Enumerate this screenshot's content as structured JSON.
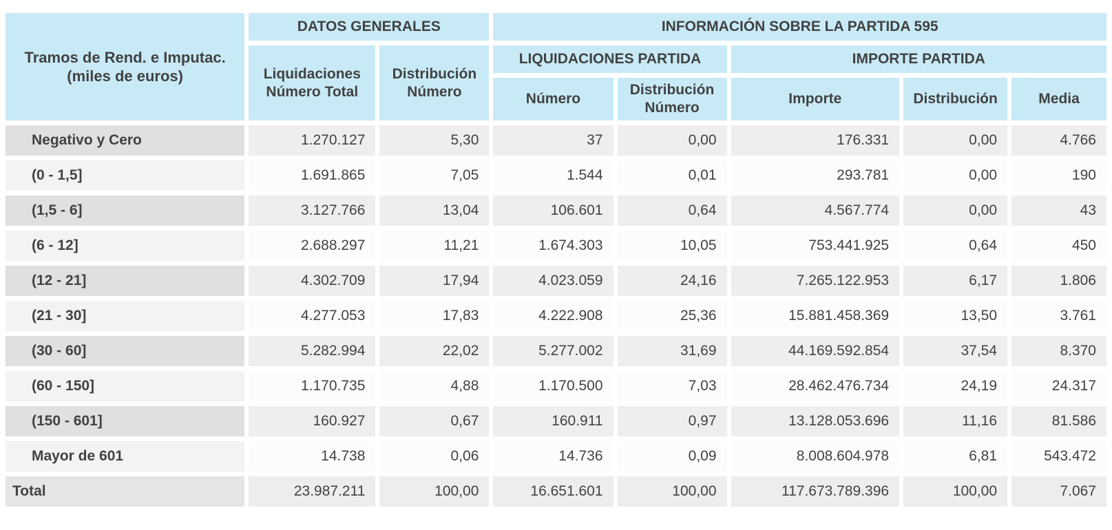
{
  "colors": {
    "header-bg": "#c8eaf6",
    "label-odd": "#e0e0e0",
    "label-even": "#f3f3f3",
    "cell-odd": "#eeeeee",
    "cell-even": "#fcfcfc",
    "total-label": "#e5e5e5",
    "total-cell": "#ededed",
    "text": "#424242"
  },
  "chart_data": {
    "type": "table",
    "corner_header": {
      "line1": "Tramos de Rend. e Imputac.",
      "line2": "(miles de euros)"
    },
    "group_headers": {
      "datos_generales": "DATOS GENERALES",
      "informacion_partida": "INFORMACIÓN SOBRE LA PARTIDA 595",
      "liquidaciones_partida": "LIQUIDACIONES PARTIDA",
      "importe_partida": "IMPORTE PARTIDA"
    },
    "columns": [
      "Liquidaciones Número Total",
      "Distribución Número",
      "Número",
      "Distribución Número",
      "Importe",
      "Distribución",
      "Media"
    ],
    "rows": [
      {
        "label": "Negativo y Cero",
        "values": [
          "1.270.127",
          "5,30",
          "37",
          "0,00",
          "176.331",
          "0,00",
          "4.766"
        ]
      },
      {
        "label": "(0 - 1,5]",
        "values": [
          "1.691.865",
          "7,05",
          "1.544",
          "0,01",
          "293.781",
          "0,00",
          "190"
        ]
      },
      {
        "label": "(1,5 - 6]",
        "values": [
          "3.127.766",
          "13,04",
          "106.601",
          "0,64",
          "4.567.774",
          "0,00",
          "43"
        ]
      },
      {
        "label": "(6 - 12]",
        "values": [
          "2.688.297",
          "11,21",
          "1.674.303",
          "10,05",
          "753.441.925",
          "0,64",
          "450"
        ]
      },
      {
        "label": "(12 - 21]",
        "values": [
          "4.302.709",
          "17,94",
          "4.023.059",
          "24,16",
          "7.265.122.953",
          "6,17",
          "1.806"
        ]
      },
      {
        "label": "(21 - 30]",
        "values": [
          "4.277.053",
          "17,83",
          "4.222.908",
          "25,36",
          "15.881.458.369",
          "13,50",
          "3.761"
        ]
      },
      {
        "label": "(30 - 60]",
        "values": [
          "5.282.994",
          "22,02",
          "5.277.002",
          "31,69",
          "44.169.592.854",
          "37,54",
          "8.370"
        ]
      },
      {
        "label": "(60 - 150]",
        "values": [
          "1.170.735",
          "4,88",
          "1.170.500",
          "7,03",
          "28.462.476.734",
          "24,19",
          "24.317"
        ]
      },
      {
        "label": "(150 - 601]",
        "values": [
          "160.927",
          "0,67",
          "160.911",
          "0,97",
          "13.128.053.696",
          "11,16",
          "81.586"
        ]
      },
      {
        "label": "Mayor de 601",
        "values": [
          "14.738",
          "0,06",
          "14.736",
          "0,09",
          "8.008.604.978",
          "6,81",
          "543.472"
        ]
      },
      {
        "label": "Total",
        "is_total": true,
        "values": [
          "23.987.211",
          "100,00",
          "16.651.601",
          "100,00",
          "117.673.789.396",
          "100,00",
          "7.067"
        ]
      }
    ]
  }
}
